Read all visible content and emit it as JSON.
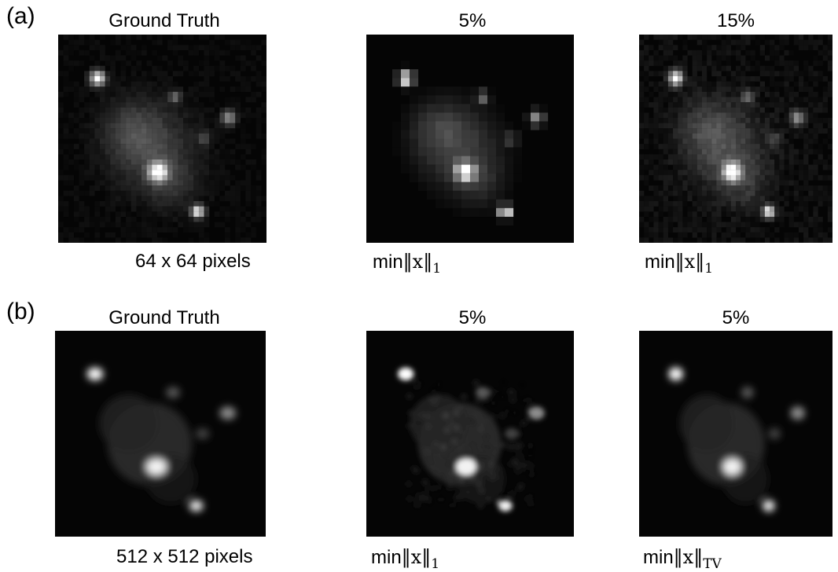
{
  "figure": {
    "row_a": {
      "label": "(a)",
      "panels": [
        {
          "title": "Ground Truth",
          "caption": "64 x 64 pixels",
          "style": "blocky-gt"
        },
        {
          "title": "5%",
          "caption_fn": "min",
          "caption_var": "x",
          "caption_sub": "1",
          "style": "blocky-sparse"
        },
        {
          "title": "15%",
          "caption_fn": "min",
          "caption_var": "x",
          "caption_sub": "1",
          "style": "blocky-noisy"
        }
      ]
    },
    "row_b": {
      "label": "(b)",
      "panels": [
        {
          "title": "Ground Truth",
          "caption": "512 x 512 pixels",
          "style": "smooth-gt"
        },
        {
          "title": "5%",
          "caption_fn": "min",
          "caption_var": "x",
          "caption_sub": "1",
          "style": "smooth-noisy"
        },
        {
          "title": "5%",
          "caption_fn": "min",
          "caption_var": "x",
          "caption_sub": "TV",
          "style": "smooth-tv"
        }
      ]
    }
  }
}
